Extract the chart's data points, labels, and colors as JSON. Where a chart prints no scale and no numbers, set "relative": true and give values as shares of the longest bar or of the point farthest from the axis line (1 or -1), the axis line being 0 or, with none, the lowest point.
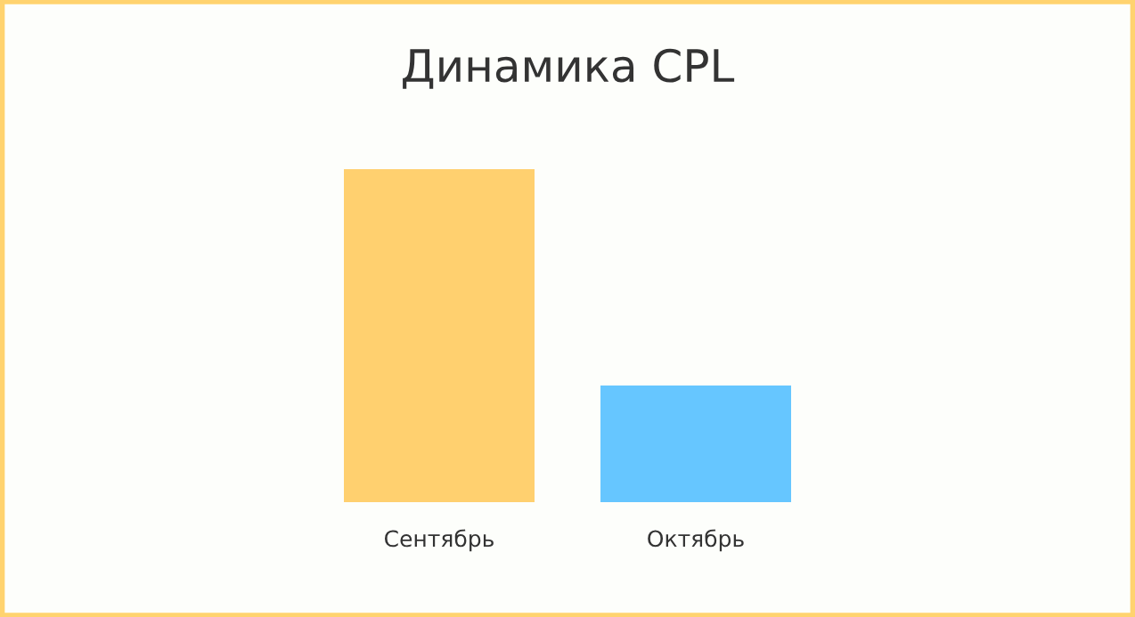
{
  "chart_data": {
    "type": "bar",
    "title": "Динамика CPL",
    "relative": true,
    "categories": [
      "Сентябрь",
      "Октябрь"
    ],
    "values": [
      1,
      0.35
    ],
    "colors": [
      "#ffd06f",
      "#66c6ff"
    ],
    "grid": false,
    "legend": false
  }
}
